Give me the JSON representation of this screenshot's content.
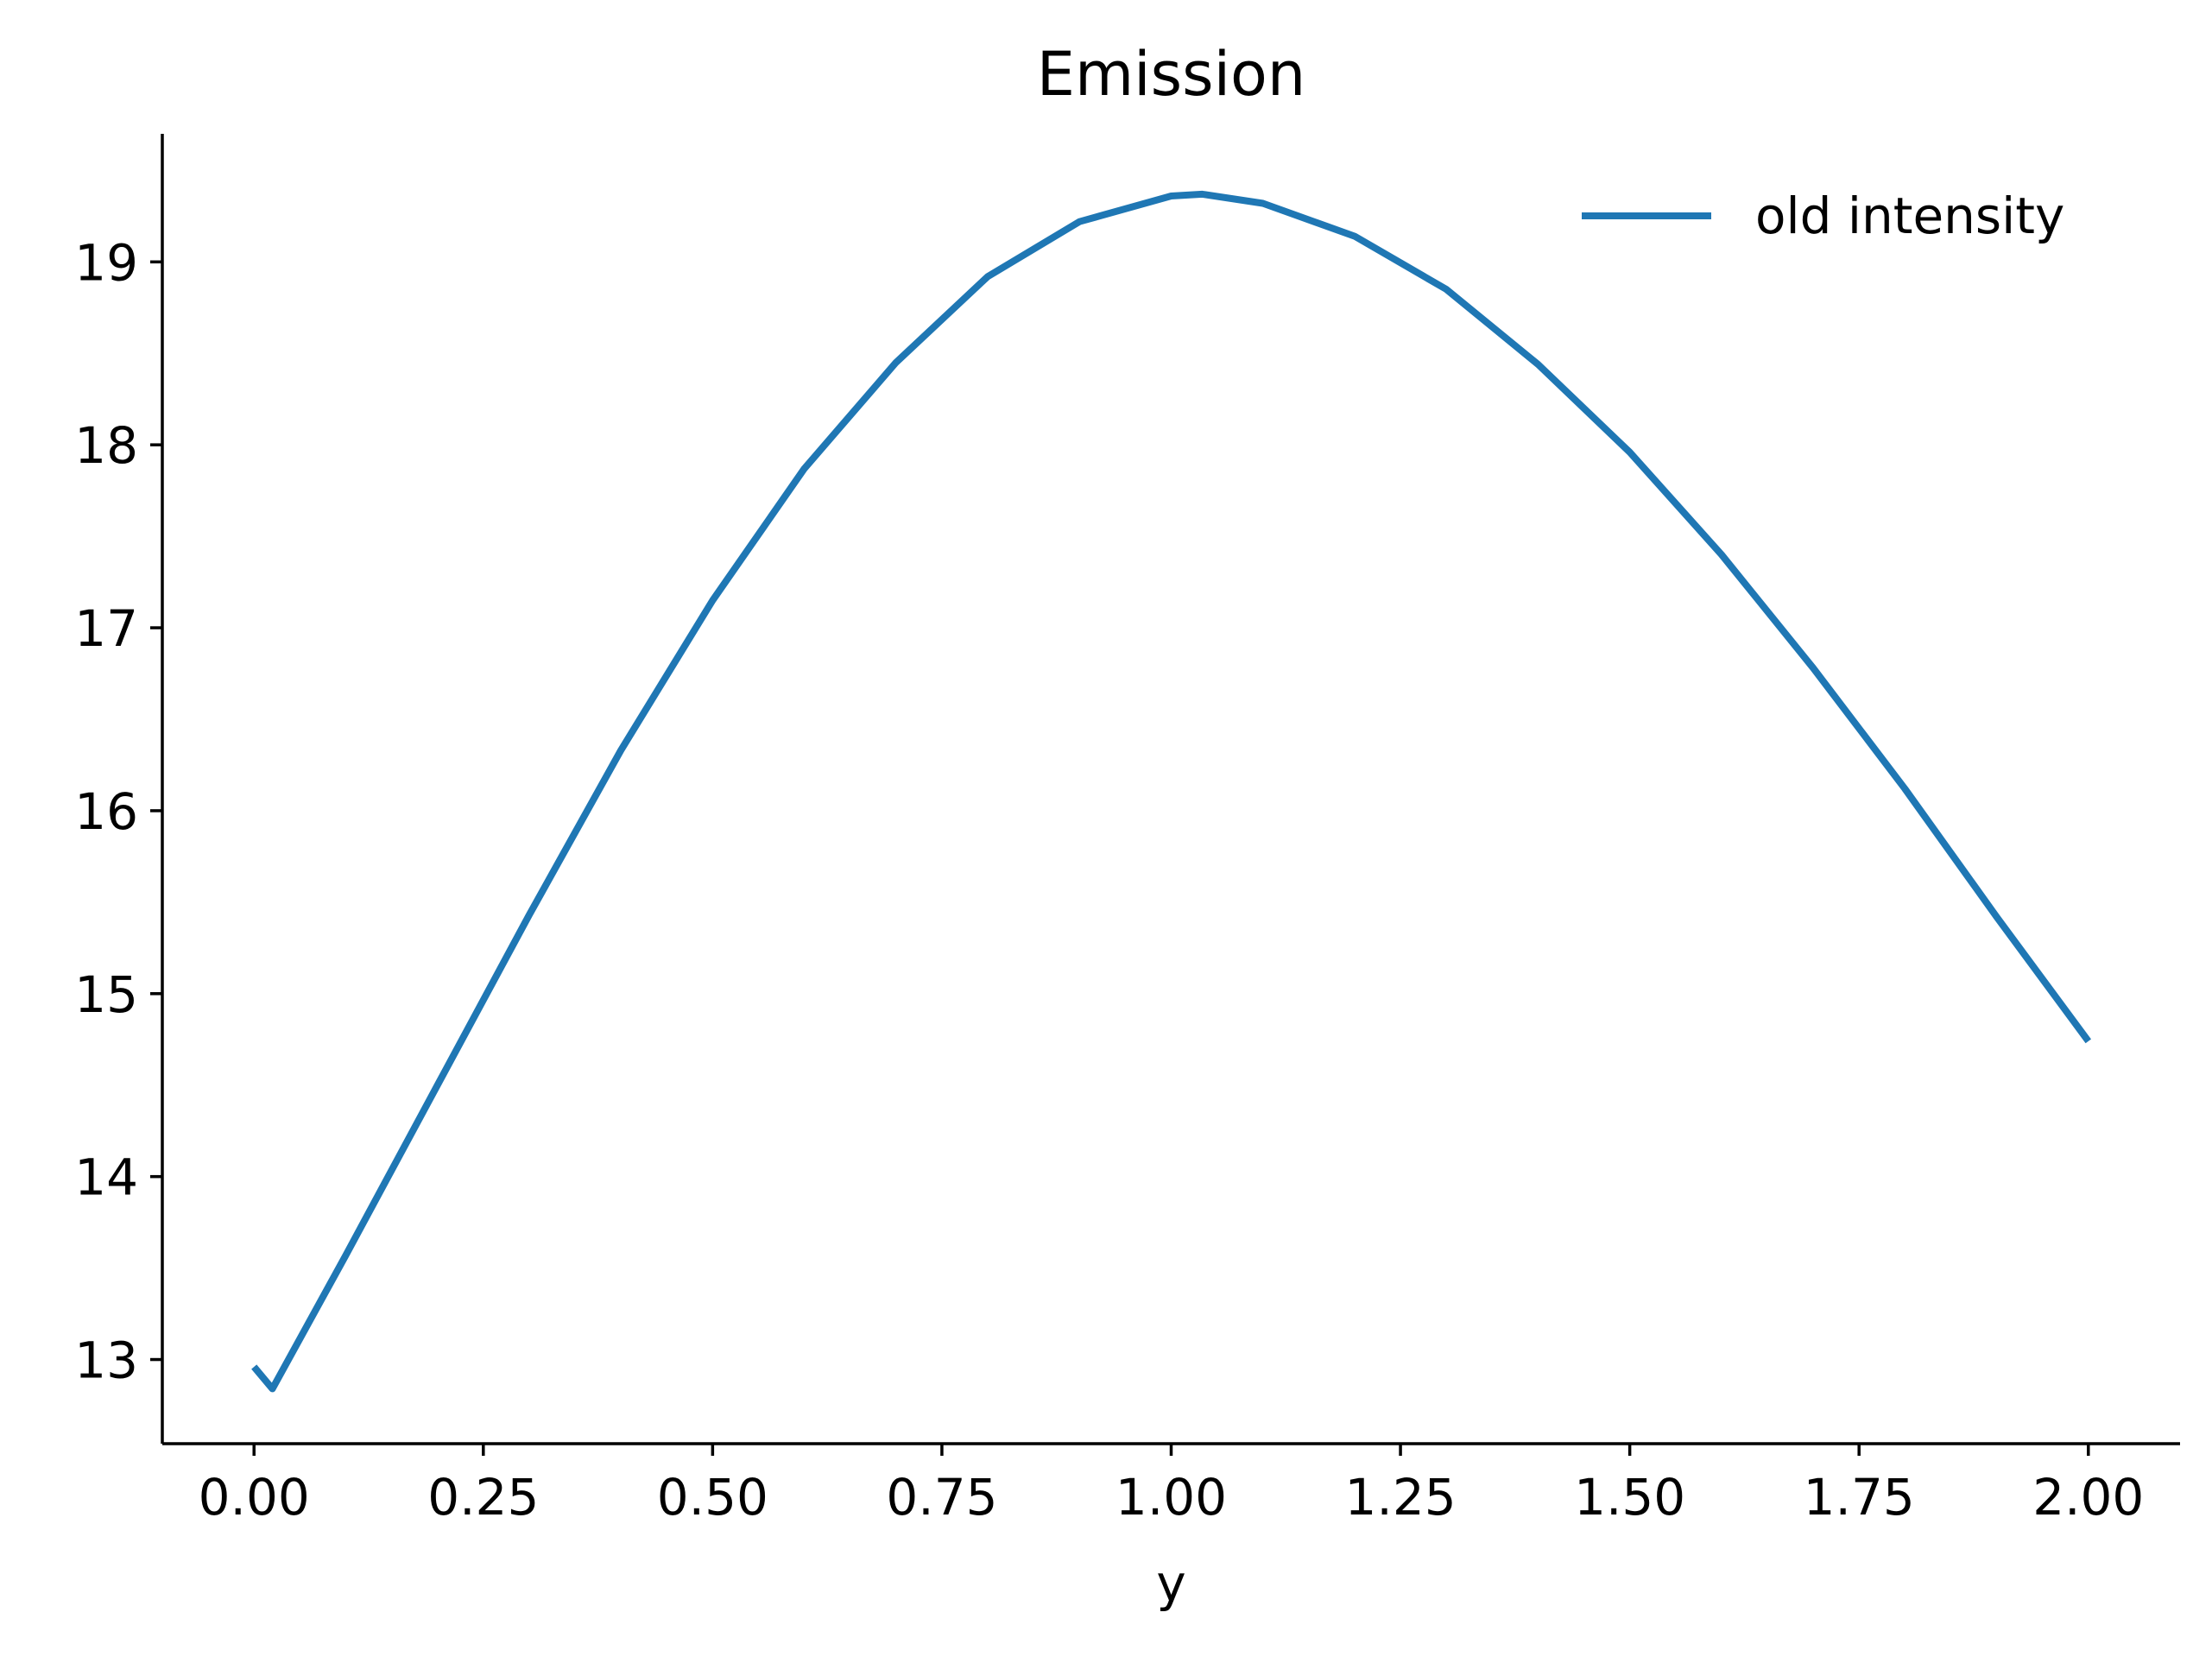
{
  "chart_data": {
    "type": "line",
    "title": "Emission",
    "xlabel": "y",
    "ylabel": "",
    "xlim": [
      -0.1,
      2.1
    ],
    "ylim": [
      12.54,
      19.7
    ],
    "xticks": [
      0.0,
      0.25,
      0.5,
      0.75,
      1.0,
      1.25,
      1.5,
      1.75,
      2.0
    ],
    "xtick_labels": [
      "0.00",
      "0.25",
      "0.50",
      "0.75",
      "1.00",
      "1.25",
      "1.50",
      "1.75",
      "2.00"
    ],
    "yticks": [
      13,
      14,
      15,
      16,
      17,
      18,
      19
    ],
    "ytick_labels": [
      "13",
      "14",
      "15",
      "16",
      "17",
      "18",
      "19"
    ],
    "grid": false,
    "legend": {
      "placement": "top-right",
      "entries": [
        "old intensity"
      ]
    },
    "series": [
      {
        "name": "old intensity",
        "color": "#1f77b4",
        "x": [
          0.0,
          0.02,
          0.1,
          0.2,
          0.3,
          0.4,
          0.5,
          0.6,
          0.7,
          0.8,
          0.9,
          1.0,
          1.034,
          1.1,
          1.2,
          1.3,
          1.4,
          1.5,
          1.6,
          1.7,
          1.8,
          1.9,
          2.0
        ],
        "y": [
          12.96,
          12.84,
          13.57,
          14.5,
          15.43,
          16.33,
          17.15,
          17.87,
          18.45,
          18.92,
          19.22,
          19.36,
          19.37,
          19.32,
          19.14,
          18.85,
          18.44,
          17.96,
          17.4,
          16.78,
          16.12,
          15.42,
          14.74
        ]
      }
    ]
  }
}
